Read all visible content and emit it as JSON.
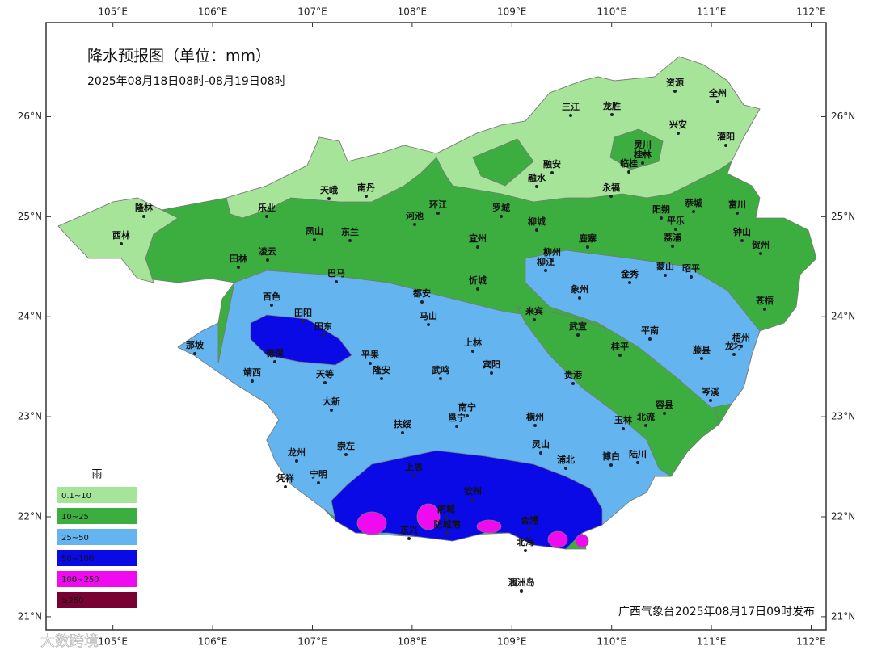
{
  "header": {
    "title": "降水预报图（单位：mm）",
    "subtitle": "2025年08月18日08时-08月19日08时"
  },
  "map": {
    "lonlim": [
      104.33,
      112.15
    ],
    "latlim": [
      20.87,
      26.94
    ],
    "lonticks": [
      {
        "value": 105,
        "label": "105°E"
      },
      {
        "value": 106,
        "label": "106°E"
      },
      {
        "value": 107,
        "label": "107°E"
      },
      {
        "value": 108,
        "label": "108°E"
      },
      {
        "value": 109,
        "label": "109°E"
      },
      {
        "value": 110,
        "label": "110°E"
      },
      {
        "value": 111,
        "label": "111°E"
      },
      {
        "value": 112,
        "label": "112°E"
      }
    ],
    "latticks": [
      {
        "value": 26,
        "label": "26°N"
      },
      {
        "value": 25,
        "label": "25°N"
      },
      {
        "value": 24,
        "label": "24°N"
      },
      {
        "value": 23,
        "label": "23°N"
      },
      {
        "value": 22,
        "label": "22°N"
      },
      {
        "value": 21,
        "label": "21°N"
      }
    ],
    "cities": [
      "资源",
      "全州",
      "三江",
      "龙胜",
      "兴安",
      "灌阳",
      "灵川",
      "桂林",
      "临桂",
      "融安",
      "融水",
      "永福",
      "隆林",
      "天峨",
      "南丹",
      "环江",
      "乐业",
      "河池",
      "罗城",
      "阳朔",
      "恭城",
      "富川",
      "平乐",
      "西林",
      "凤山",
      "东兰",
      "宜州",
      "柳城",
      "鹿寨",
      "荔浦",
      "钟山",
      "贺州",
      "田林",
      "凌云",
      "柳州",
      "柳江",
      "巴马",
      "金秀",
      "蒙山",
      "昭平",
      "都安",
      "忻城",
      "象州",
      "百色",
      "苍梧",
      "田阳",
      "马山",
      "来宾",
      "田东",
      "武宣",
      "平南",
      "梧州",
      "那坡",
      "上林",
      "桂平",
      "藤县",
      "龙圩",
      "德保",
      "平果",
      "宾阳",
      "靖西",
      "天等",
      "隆安",
      "武鸣",
      "贵港",
      "岑溪",
      "大新",
      "南宁",
      "邕宁",
      "容县",
      "玉林",
      "北流",
      "扶绥",
      "横州",
      "龙州",
      "崇左",
      "灵山",
      "浦北",
      "博白",
      "陆川",
      "宁明",
      "凭祥",
      "上思",
      "钦州",
      "防城",
      "东兴",
      "防城港",
      "合浦",
      "北海",
      "涠洲岛"
    ]
  },
  "legend": {
    "title": "雨",
    "items": [
      {
        "label": "0.1~10",
        "color": "#a6e49a"
      },
      {
        "label": "10~25",
        "color": "#3cae3f"
      },
      {
        "label": "25~50",
        "color": "#63b4ef"
      },
      {
        "label": "50~100",
        "color": "#0a0ae6"
      },
      {
        "label": "100~250",
        "color": "#f00af0"
      },
      {
        "label": "≥250",
        "color": "#780032"
      }
    ]
  },
  "footer": "广西气象台2025年08月17日09时发布",
  "watermark": "大数跨境"
}
